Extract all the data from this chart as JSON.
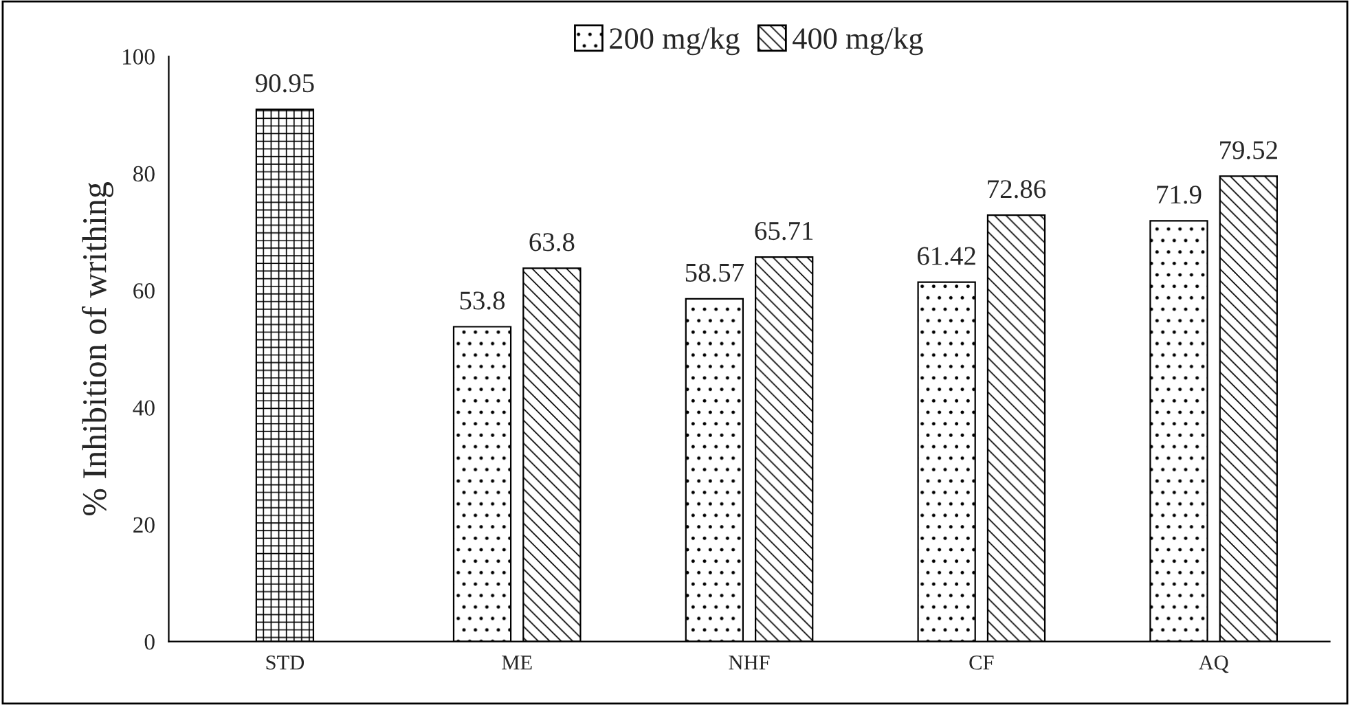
{
  "chart_data": {
    "type": "bar",
    "ylabel": "% Inhibition of writhing",
    "categories": [
      "STD",
      "ME",
      "NHF",
      "CF",
      "AQ"
    ],
    "series": [
      {
        "color": "#000000",
        "values": [
          90.95,
          null,
          null,
          null,
          null
        ]
      },
      {
        "name": "200 mg/kg",
        "color": "#000000",
        "values": [
          null,
          53.8,
          58.57,
          61.42,
          71.9
        ]
      },
      {
        "name": "400 mg/kg",
        "color": "#000000",
        "values": [
          null,
          63.8,
          65.71,
          72.86,
          79.52
        ]
      }
    ],
    "ylim": [
      0,
      100
    ],
    "yticks": [
      0,
      20,
      40,
      60,
      80,
      100
    ],
    "data_labels": true,
    "legend": "top",
    "grid": false
  }
}
